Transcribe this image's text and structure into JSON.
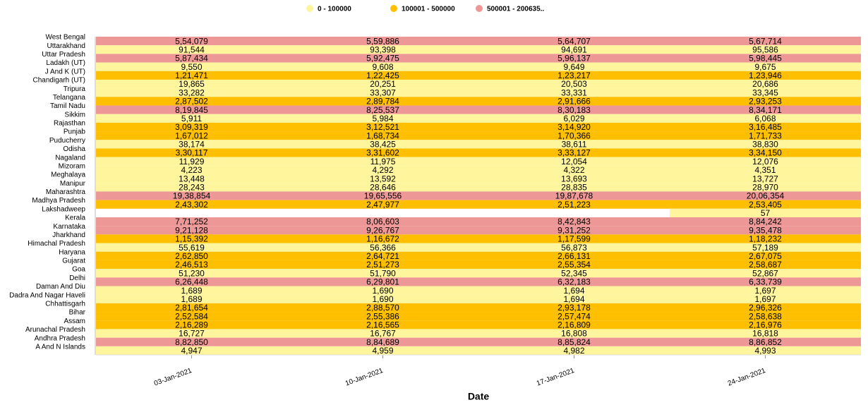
{
  "chart_data": {
    "type": "heatmap",
    "x_title": "Date",
    "x": [
      "03-Jan-2021",
      "10-Jan-2021",
      "17-Jan-2021",
      "24-Jan-2021"
    ],
    "categories": [
      "West Bengal",
      "Uttarakhand",
      "Uttar Pradesh",
      "Ladakh (UT)",
      "J And K (UT)",
      "Chandigarh (UT)",
      "Tripura",
      "Telangana",
      "Tamil Nadu",
      "Sikkim",
      "Rajasthan",
      "Punjab",
      "Puducherry",
      "Odisha",
      "Nagaland",
      "Mizoram",
      "Meghalaya",
      "Manipur",
      "Maharashtra",
      "Madhya Pradesh",
      "Lakshadweep",
      "Kerala",
      "Karnataka",
      "Jharkhand",
      "Himachal Pradesh",
      "Haryana",
      "Gujarat",
      "Goa",
      "Delhi",
      "Daman And Diu",
      "Dadra And Nagar Haveli",
      "Chhattisgarh",
      "Bihar",
      "Assam",
      "Arunachal Pradesh",
      "Andhra Pradesh",
      "A And N Islands"
    ],
    "values": [
      [
        554079,
        559886,
        564707,
        567714
      ],
      [
        91544,
        93398,
        94691,
        95586
      ],
      [
        587434,
        592475,
        596137,
        598445
      ],
      [
        9550,
        9608,
        9649,
        9675
      ],
      [
        121471,
        122425,
        123217,
        123946
      ],
      [
        19865,
        20251,
        20503,
        20686
      ],
      [
        33282,
        33307,
        33331,
        33345
      ],
      [
        287502,
        289784,
        291666,
        293253
      ],
      [
        819845,
        825537,
        830183,
        834171
      ],
      [
        5911,
        5984,
        6029,
        6068
      ],
      [
        309319,
        312521,
        314920,
        316485
      ],
      [
        167012,
        168734,
        170366,
        171733
      ],
      [
        38174,
        38425,
        38611,
        38830
      ],
      [
        330117,
        331602,
        333127,
        334150
      ],
      [
        11929,
        11975,
        12054,
        12076
      ],
      [
        4223,
        4292,
        4322,
        4351
      ],
      [
        13448,
        13592,
        13693,
        13727
      ],
      [
        28243,
        28646,
        28835,
        28970
      ],
      [
        1938854,
        1965556,
        1987678,
        2006354
      ],
      [
        243302,
        247977,
        251223,
        253405
      ],
      [
        null,
        null,
        null,
        57
      ],
      [
        771252,
        806603,
        842843,
        884242
      ],
      [
        921128,
        926767,
        931252,
        935478
      ],
      [
        115392,
        116672,
        117599,
        118232
      ],
      [
        55619,
        56366,
        56873,
        57189
      ],
      [
        262850,
        264721,
        266131,
        267075
      ],
      [
        246513,
        251273,
        255354,
        258687
      ],
      [
        51230,
        51790,
        52345,
        52867
      ],
      [
        626448,
        629801,
        632183,
        633739
      ],
      [
        1689,
        1690,
        1694,
        1697
      ],
      [
        1689,
        1690,
        1694,
        1697
      ],
      [
        281654,
        288570,
        293178,
        296326
      ],
      [
        252584,
        255386,
        257474,
        258638
      ],
      [
        216289,
        216565,
        216809,
        216976
      ],
      [
        16727,
        16767,
        16808,
        16818
      ],
      [
        882850,
        884689,
        885824,
        886852
      ],
      [
        4947,
        4959,
        4982,
        4993
      ]
    ],
    "value_labels": [
      [
        "5,54,079",
        "5,59,886",
        "5,64,707",
        "5,67,714"
      ],
      [
        "91,544",
        "93,398",
        "94,691",
        "95,586"
      ],
      [
        "5,87,434",
        "5,92,475",
        "5,96,137",
        "5,98,445"
      ],
      [
        "9,550",
        "9,608",
        "9,649",
        "9,675"
      ],
      [
        "1,21,471",
        "1,22,425",
        "1,23,217",
        "1,23,946"
      ],
      [
        "19,865",
        "20,251",
        "20,503",
        "20,686"
      ],
      [
        "33,282",
        "33,307",
        "33,331",
        "33,345"
      ],
      [
        "2,87,502",
        "2,89,784",
        "2,91,666",
        "2,93,253"
      ],
      [
        "8,19,845",
        "8,25,537",
        "8,30,183",
        "8,34,171"
      ],
      [
        "5,911",
        "5,984",
        "6,029",
        "6,068"
      ],
      [
        "3,09,319",
        "3,12,521",
        "3,14,920",
        "3,16,485"
      ],
      [
        "1,67,012",
        "1,68,734",
        "1,70,366",
        "1,71,733"
      ],
      [
        "38,174",
        "38,425",
        "38,611",
        "38,830"
      ],
      [
        "3,30,117",
        "3,31,602",
        "3,33,127",
        "3,34,150"
      ],
      [
        "11,929",
        "11,975",
        "12,054",
        "12,076"
      ],
      [
        "4,223",
        "4,292",
        "4,322",
        "4,351"
      ],
      [
        "13,448",
        "13,592",
        "13,693",
        "13,727"
      ],
      [
        "28,243",
        "28,646",
        "28,835",
        "28,970"
      ],
      [
        "19,38,854",
        "19,65,556",
        "19,87,678",
        "20,06,354"
      ],
      [
        "2,43,302",
        "2,47,977",
        "2,51,223",
        "2,53,405"
      ],
      [
        null,
        null,
        null,
        "57"
      ],
      [
        "7,71,252",
        "8,06,603",
        "8,42,843",
        "8,84,242"
      ],
      [
        "9,21,128",
        "9,26,767",
        "9,31,252",
        "9,35,478"
      ],
      [
        "1,15,392",
        "1,16,672",
        "1,17,599",
        "1,18,232"
      ],
      [
        "55,619",
        "56,366",
        "56,873",
        "57,189"
      ],
      [
        "2,62,850",
        "2,64,721",
        "2,66,131",
        "2,67,075"
      ],
      [
        "2,46,513",
        "2,51,273",
        "2,55,354",
        "2,58,687"
      ],
      [
        "51,230",
        "51,790",
        "52,345",
        "52,867"
      ],
      [
        "6,26,448",
        "6,29,801",
        "6,32,183",
        "6,33,739"
      ],
      [
        "1,689",
        "1,690",
        "1,694",
        "1,697"
      ],
      [
        "1,689",
        "1,690",
        "1,694",
        "1,697"
      ],
      [
        "2,81,654",
        "2,88,570",
        "2,93,178",
        "2,96,326"
      ],
      [
        "2,52,584",
        "2,55,386",
        "2,57,474",
        "2,58,638"
      ],
      [
        "2,16,289",
        "2,16,565",
        "2,16,809",
        "2,16,976"
      ],
      [
        "16,727",
        "16,767",
        "16,808",
        "16,818"
      ],
      [
        "8,82,850",
        "8,84,689",
        "8,85,824",
        "8,86,852"
      ],
      [
        "4,947",
        "4,959",
        "4,982",
        "4,993"
      ]
    ],
    "color_bins": [
      {
        "label": "0 - 100000",
        "color": "#fff59d",
        "min": 0,
        "max": 100000
      },
      {
        "label": "100001 - 500000",
        "color": "#fdbf00",
        "min": 100001,
        "max": 500000
      },
      {
        "label": "500001 - 200635..",
        "color": "#ee9797",
        "min": 500001,
        "max": 2006354
      }
    ]
  }
}
